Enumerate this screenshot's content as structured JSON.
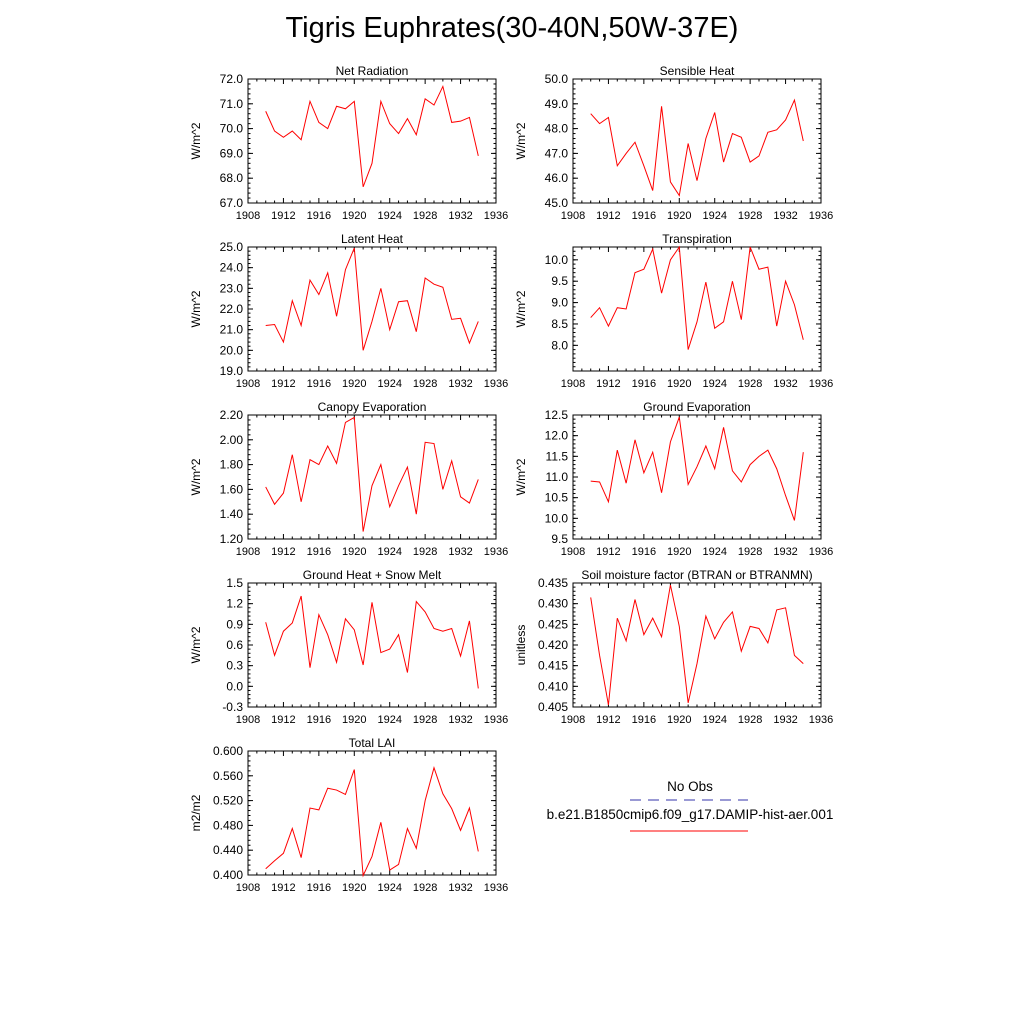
{
  "title": "Tigris Euphrates(30-40N,50W-37E)",
  "line_color": "#ff0000",
  "obs_color": "#3333aa",
  "legend": {
    "obs_label": "No Obs",
    "model_label": "b.e21.B1850cmip6.f09_g17.DAMIP-hist-aer.001"
  },
  "chart_data": [
    {
      "type": "line",
      "title": "Net Radiation",
      "xlabel": "",
      "ylabel": "W/m^2",
      "xlim": [
        1908,
        1936
      ],
      "ylim": [
        67.0,
        72.0
      ],
      "xticks": [
        "1908",
        "1912",
        "1916",
        "1920",
        "1924",
        "1928",
        "1932",
        "1936"
      ],
      "yticks": [
        "67.0",
        "68.0",
        "69.0",
        "70.0",
        "71.0",
        "72.0"
      ],
      "x": [
        1910,
        1911,
        1912,
        1913,
        1914,
        1915,
        1916,
        1917,
        1918,
        1919,
        1920,
        1921,
        1922,
        1923,
        1924,
        1925,
        1926,
        1927,
        1928,
        1929,
        1930,
        1931,
        1932,
        1933,
        1934
      ],
      "series": [
        {
          "values": [
            70.7,
            69.9,
            69.65,
            69.9,
            69.55,
            71.1,
            70.25,
            70.0,
            70.9,
            70.8,
            71.1,
            67.65,
            68.6,
            71.1,
            70.2,
            69.8,
            70.4,
            69.75,
            71.2,
            70.95,
            71.7,
            70.25,
            70.3,
            70.45,
            68.9
          ]
        }
      ]
    },
    {
      "type": "line",
      "title": "Sensible Heat",
      "xlabel": "",
      "ylabel": "W/m^2",
      "xlim": [
        1908,
        1936
      ],
      "ylim": [
        45.0,
        50.0
      ],
      "xticks": [
        "1908",
        "1912",
        "1916",
        "1920",
        "1924",
        "1928",
        "1932",
        "1936"
      ],
      "yticks": [
        "45.0",
        "46.0",
        "47.0",
        "48.0",
        "49.0",
        "50.0"
      ],
      "x": [
        1910,
        1911,
        1912,
        1913,
        1914,
        1915,
        1916,
        1917,
        1918,
        1919,
        1920,
        1921,
        1922,
        1923,
        1924,
        1925,
        1926,
        1927,
        1928,
        1929,
        1930,
        1931,
        1932,
        1933,
        1934
      ],
      "series": [
        {
          "values": [
            48.6,
            48.2,
            48.45,
            46.5,
            47.0,
            47.45,
            46.5,
            45.5,
            48.9,
            45.85,
            45.3,
            47.4,
            45.9,
            47.6,
            48.65,
            46.65,
            47.8,
            47.65,
            46.65,
            46.9,
            47.85,
            47.95,
            48.35,
            49.15,
            47.5
          ]
        }
      ]
    },
    {
      "type": "line",
      "title": "Latent Heat",
      "xlabel": "",
      "ylabel": "W/m^2",
      "xlim": [
        1908,
        1936
      ],
      "ylim": [
        19.0,
        25.0
      ],
      "xticks": [
        "1908",
        "1912",
        "1916",
        "1920",
        "1924",
        "1928",
        "1932",
        "1936"
      ],
      "yticks": [
        "19.0",
        "20.0",
        "21.0",
        "22.0",
        "23.0",
        "24.0",
        "25.0"
      ],
      "x": [
        1910,
        1911,
        1912,
        1913,
        1914,
        1915,
        1916,
        1917,
        1918,
        1919,
        1920,
        1921,
        1922,
        1923,
        1924,
        1925,
        1926,
        1927,
        1928,
        1929,
        1930,
        1931,
        1932,
        1933,
        1934
      ],
      "series": [
        {
          "values": [
            21.2,
            21.25,
            20.4,
            22.4,
            21.2,
            23.4,
            22.7,
            23.75,
            21.65,
            23.9,
            24.95,
            20.0,
            21.4,
            23.0,
            21.0,
            22.35,
            22.4,
            20.9,
            23.5,
            23.2,
            23.05,
            21.5,
            21.55,
            20.35,
            21.4
          ]
        }
      ]
    },
    {
      "type": "line",
      "title": "Transpiration",
      "xlabel": "",
      "ylabel": "W/m^2",
      "xlim": [
        1908,
        1936
      ],
      "ylim": [
        7.4,
        10.3
      ],
      "xticks": [
        "1908",
        "1912",
        "1916",
        "1920",
        "1924",
        "1928",
        "1932",
        "1936"
      ],
      "yticks": [
        "8.0",
        "8.5",
        "9.0",
        "9.5",
        "10.0"
      ],
      "x": [
        1910,
        1911,
        1912,
        1913,
        1914,
        1915,
        1916,
        1917,
        1918,
        1919,
        1920,
        1921,
        1922,
        1923,
        1924,
        1925,
        1926,
        1927,
        1928,
        1929,
        1930,
        1931,
        1932,
        1933,
        1934
      ],
      "series": [
        {
          "values": [
            8.65,
            8.88,
            8.45,
            8.88,
            8.85,
            9.7,
            9.78,
            10.25,
            9.22,
            10.0,
            10.3,
            7.9,
            8.55,
            9.48,
            8.4,
            8.55,
            9.5,
            8.6,
            10.3,
            9.78,
            9.83,
            8.45,
            9.5,
            8.95,
            8.13
          ]
        }
      ]
    },
    {
      "type": "line",
      "title": "Canopy Evaporation",
      "xlabel": "",
      "ylabel": "W/m^2",
      "xlim": [
        1908,
        1936
      ],
      "ylim": [
        1.2,
        2.2
      ],
      "xticks": [
        "1908",
        "1912",
        "1916",
        "1920",
        "1924",
        "1928",
        "1932",
        "1936"
      ],
      "yticks": [
        "1.20",
        "1.40",
        "1.60",
        "1.80",
        "2.00",
        "2.20"
      ],
      "x": [
        1910,
        1911,
        1912,
        1913,
        1914,
        1915,
        1916,
        1917,
        1918,
        1919,
        1920,
        1921,
        1922,
        1923,
        1924,
        1925,
        1926,
        1927,
        1928,
        1929,
        1930,
        1931,
        1932,
        1933,
        1934
      ],
      "series": [
        {
          "values": [
            1.62,
            1.48,
            1.57,
            1.88,
            1.5,
            1.84,
            1.8,
            1.95,
            1.81,
            2.14,
            2.18,
            1.26,
            1.63,
            1.8,
            1.46,
            1.63,
            1.78,
            1.4,
            1.98,
            1.97,
            1.6,
            1.83,
            1.54,
            1.49,
            1.68
          ]
        }
      ]
    },
    {
      "type": "line",
      "title": "Ground Evaporation",
      "xlabel": "",
      "ylabel": "W/m^2",
      "xlim": [
        1908,
        1936
      ],
      "ylim": [
        9.5,
        12.5
      ],
      "xticks": [
        "1908",
        "1912",
        "1916",
        "1920",
        "1924",
        "1928",
        "1932",
        "1936"
      ],
      "yticks": [
        "9.5",
        "10.0",
        "10.5",
        "11.0",
        "11.5",
        "12.0",
        "12.5"
      ],
      "x": [
        1910,
        1911,
        1912,
        1913,
        1914,
        1915,
        1916,
        1917,
        1918,
        1919,
        1920,
        1921,
        1922,
        1923,
        1924,
        1925,
        1926,
        1927,
        1928,
        1929,
        1930,
        1931,
        1932,
        1933,
        1934
      ],
      "series": [
        {
          "values": [
            10.9,
            10.88,
            10.4,
            11.65,
            10.85,
            11.9,
            11.1,
            11.6,
            10.62,
            11.85,
            12.45,
            10.82,
            11.25,
            11.75,
            11.2,
            12.2,
            11.15,
            10.88,
            11.3,
            11.5,
            11.65,
            11.2,
            10.55,
            9.95,
            11.6
          ]
        }
      ]
    },
    {
      "type": "line",
      "title": "Ground Heat + Snow Melt",
      "xlabel": "",
      "ylabel": "W/m^2",
      "xlim": [
        1908,
        1936
      ],
      "ylim": [
        -0.3,
        1.5
      ],
      "xticks": [
        "1908",
        "1912",
        "1916",
        "1920",
        "1924",
        "1928",
        "1932",
        "1936"
      ],
      "yticks": [
        "-0.3",
        "0.0",
        "0.3",
        "0.6",
        "0.9",
        "1.2",
        "1.5"
      ],
      "x": [
        1910,
        1911,
        1912,
        1913,
        1914,
        1915,
        1916,
        1917,
        1918,
        1919,
        1920,
        1921,
        1922,
        1923,
        1924,
        1925,
        1926,
        1927,
        1928,
        1929,
        1930,
        1931,
        1932,
        1933,
        1934
      ],
      "series": [
        {
          "values": [
            0.93,
            0.45,
            0.8,
            0.92,
            1.31,
            0.27,
            1.04,
            0.75,
            0.35,
            0.98,
            0.82,
            0.31,
            1.22,
            0.49,
            0.54,
            0.75,
            0.2,
            1.23,
            1.08,
            0.84,
            0.8,
            0.84,
            0.44,
            0.95,
            -0.03
          ]
        }
      ]
    },
    {
      "type": "line",
      "title": "Soil moisture factor (BTRAN or BTRANMN)",
      "xlabel": "",
      "ylabel": "unitless",
      "xlim": [
        1908,
        1936
      ],
      "ylim": [
        0.405,
        0.435
      ],
      "xticks": [
        "1908",
        "1912",
        "1916",
        "1920",
        "1924",
        "1928",
        "1932",
        "1936"
      ],
      "yticks": [
        "0.405",
        "0.410",
        "0.415",
        "0.420",
        "0.425",
        "0.430",
        "0.435"
      ],
      "x": [
        1910,
        1911,
        1912,
        1913,
        1914,
        1915,
        1916,
        1917,
        1918,
        1919,
        1920,
        1921,
        1922,
        1923,
        1924,
        1925,
        1926,
        1927,
        1928,
        1929,
        1930,
        1931,
        1932,
        1933,
        1934
      ],
      "series": [
        {
          "values": [
            0.4315,
            0.4175,
            0.4055,
            0.4265,
            0.421,
            0.431,
            0.4225,
            0.4265,
            0.422,
            0.4345,
            0.4245,
            0.406,
            0.4155,
            0.427,
            0.4215,
            0.4255,
            0.428,
            0.4185,
            0.4245,
            0.424,
            0.4205,
            0.4285,
            0.429,
            0.4175,
            0.4155
          ]
        }
      ]
    },
    {
      "type": "line",
      "title": "Total LAI",
      "xlabel": "",
      "ylabel": "m2/m2",
      "xlim": [
        1908,
        1936
      ],
      "ylim": [
        0.4,
        0.6
      ],
      "xticks": [
        "1908",
        "1912",
        "1916",
        "1920",
        "1924",
        "1928",
        "1932",
        "1936"
      ],
      "yticks": [
        "0.400",
        "0.440",
        "0.480",
        "0.520",
        "0.560",
        "0.600"
      ],
      "x": [
        1910,
        1911,
        1912,
        1913,
        1914,
        1915,
        1916,
        1917,
        1918,
        1919,
        1920,
        1921,
        1922,
        1923,
        1924,
        1925,
        1926,
        1927,
        1928,
        1929,
        1930,
        1931,
        1932,
        1933,
        1934
      ],
      "series": [
        {
          "values": [
            0.41,
            0.423,
            0.435,
            0.475,
            0.428,
            0.508,
            0.505,
            0.54,
            0.537,
            0.53,
            0.57,
            0.399,
            0.43,
            0.485,
            0.408,
            0.417,
            0.475,
            0.443,
            0.52,
            0.573,
            0.531,
            0.507,
            0.472,
            0.508,
            0.438
          ]
        }
      ]
    }
  ]
}
